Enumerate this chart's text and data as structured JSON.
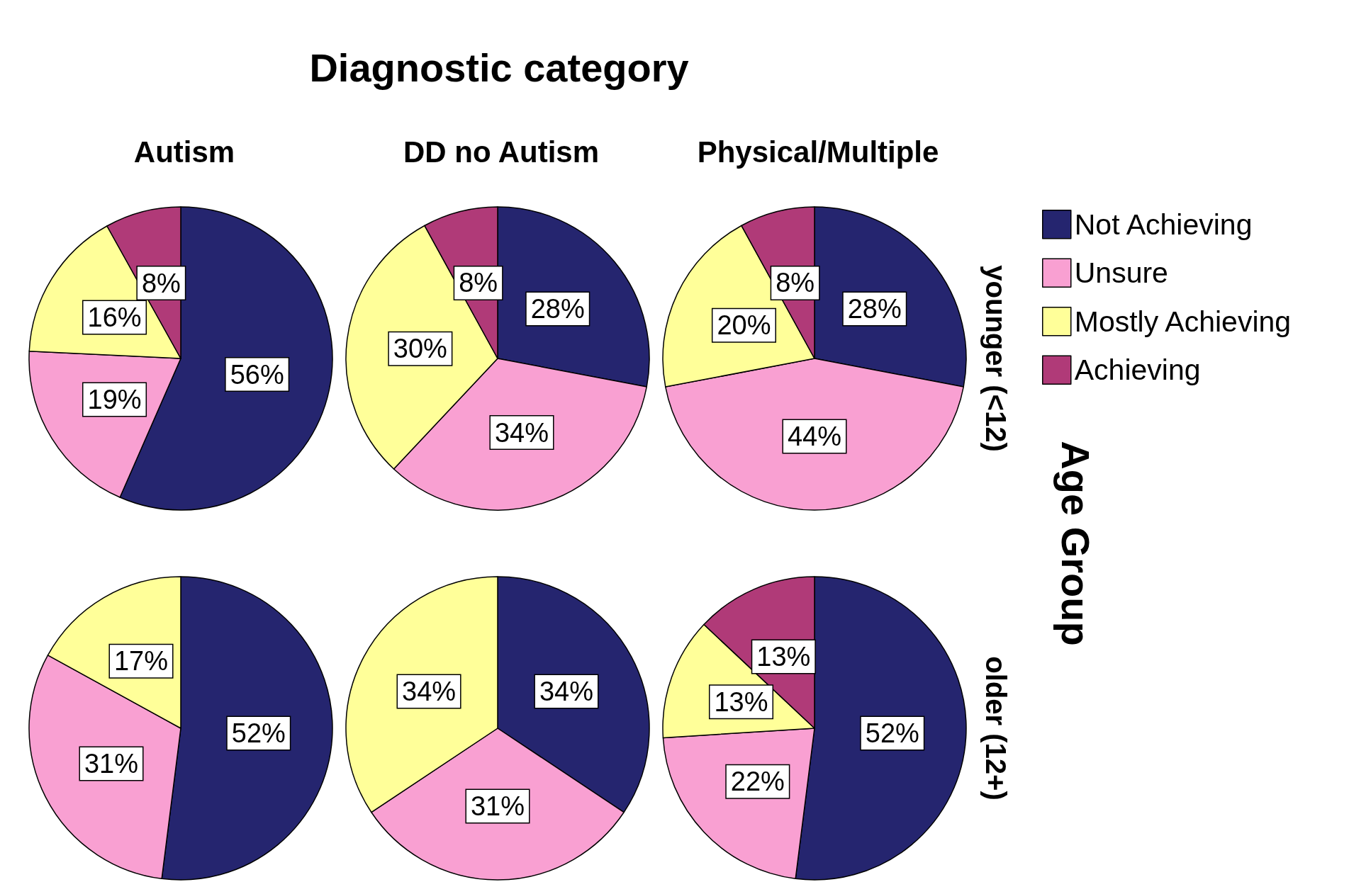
{
  "chart_data": [
    {
      "type": "other",
      "title": "Diagnostic category",
      "ylabel": "Age Group"
    },
    {
      "type": "pie",
      "title": "Autism",
      "categories": [
        null,
        null,
        null,
        null
      ],
      "values": [
        56,
        19,
        16,
        8
      ],
      "value_labels": [
        "56%",
        "19%",
        "16%",
        "8%"
      ],
      "colors": [
        "#25256f",
        "#f9a0d2",
        "#ffff99",
        "#b03a78"
      ]
    },
    {
      "type": "pie",
      "title": "DD no Autism",
      "categories": [
        null,
        null,
        null,
        null
      ],
      "values": [
        28,
        34,
        30,
        8
      ],
      "value_labels": [
        "28%",
        "34%",
        "30%",
        "8%"
      ],
      "colors": [
        "#25256f",
        "#f9a0d2",
        "#ffff99",
        "#b03a78"
      ]
    },
    {
      "type": "pie",
      "title": "Physical/Multiple",
      "y2label": "younger (<12)",
      "legend": "right",
      "categories": [
        "Not Achieving",
        "Unsure",
        "Mostly Achieving",
        "Achieving"
      ],
      "values": [
        28,
        44,
        20,
        8
      ],
      "value_labels": [
        "28%",
        "44%",
        "20%",
        "8%"
      ],
      "colors": [
        "#25256f",
        "#f9a0d2",
        "#ffff99",
        "#b03a78"
      ]
    },
    {
      "type": "pie",
      "categories": [
        null,
        null,
        null
      ],
      "values": [
        52,
        31,
        17
      ],
      "value_labels": [
        "52%",
        "31%",
        "17%"
      ],
      "colors": [
        "#25256f",
        "#f9a0d2",
        "#ffff99"
      ]
    },
    {
      "type": "pie",
      "categories": [
        null,
        null,
        null
      ],
      "values": [
        34,
        31,
        34
      ],
      "value_labels": [
        "34%",
        "31%",
        "34%"
      ],
      "colors": [
        "#25256f",
        "#f9a0d2",
        "#ffff99"
      ]
    },
    {
      "type": "pie",
      "y2label": "older (12+)",
      "categories": [
        null,
        null,
        null,
        null
      ],
      "values": [
        52,
        22,
        13,
        13
      ],
      "value_labels": [
        "52%",
        "22%",
        "13%",
        "13%"
      ],
      "colors": [
        "#25256f",
        "#f9a0d2",
        "#ffff99",
        "#b03a78"
      ]
    }
  ]
}
